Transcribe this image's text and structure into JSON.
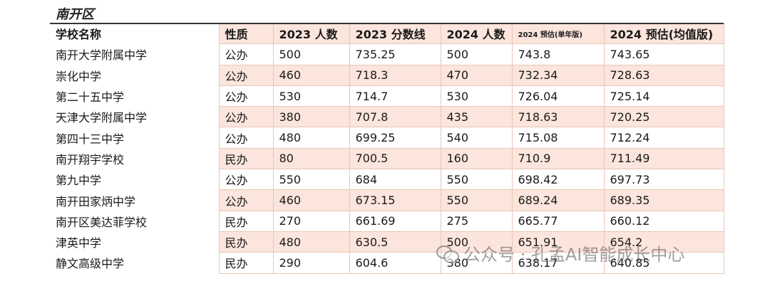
{
  "region_title": "南开区",
  "headers": [
    "学校名称",
    "性质",
    "2023 人数",
    "2023 分数线",
    "2024 人数",
    "2024 预估(单年版)",
    "2024 预估(均值版)"
  ],
  "rows": [
    [
      "南开大学附属中学",
      "公办",
      "500",
      "735.25",
      "500",
      "743.8",
      "743.65"
    ],
    [
      "崇化中学",
      "公办",
      "460",
      "718.3",
      "470",
      "732.34",
      "728.63"
    ],
    [
      "第二十五中学",
      "公办",
      "530",
      "714.7",
      "530",
      "726.04",
      "725.14"
    ],
    [
      "天津大学附属中学",
      "公办",
      "380",
      "707.8",
      "435",
      "718.63",
      "720.25"
    ],
    [
      "第四十三中学",
      "公办",
      "480",
      "699.25",
      "540",
      "715.08",
      "712.24"
    ],
    [
      "南开翔宇学校",
      "民办",
      "80",
      "700.5",
      "160",
      "710.9",
      "711.49"
    ],
    [
      "第九中学",
      "公办",
      "550",
      "684",
      "550",
      "698.42",
      "697.73"
    ],
    [
      "南开田家炳中学",
      "公办",
      "460",
      "673.15",
      "550",
      "689.24",
      "689.35"
    ],
    [
      "南开区美达菲学校",
      "民办",
      "270",
      "661.69",
      "275",
      "665.77",
      "660.12"
    ],
    [
      "津英中学",
      "民办",
      "480",
      "630.5",
      "500",
      "651.91",
      "654.2"
    ],
    [
      "静文高级中学",
      "民办",
      "290",
      "604.6",
      "380",
      "638.17",
      "640.85"
    ]
  ],
  "watermark": {
    "text": "公众号 · 孔孟AI智能成长中心",
    "icon": "wechat-icon"
  }
}
